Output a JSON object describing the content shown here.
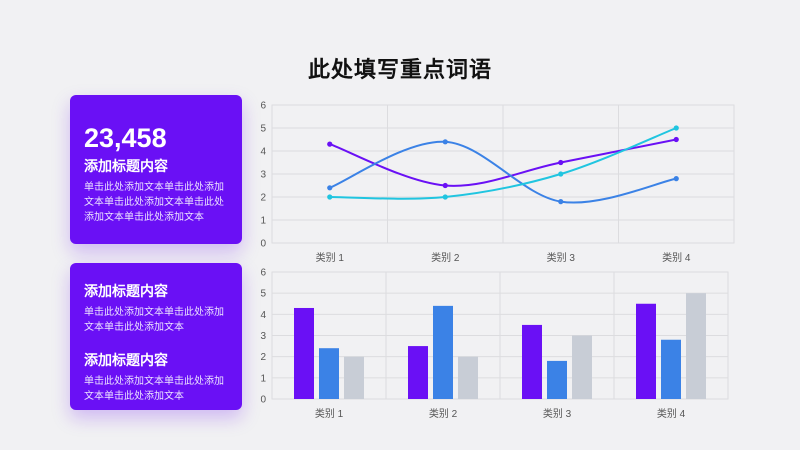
{
  "page": {
    "title": "此处填写重点词语"
  },
  "card1": {
    "number": "23,458",
    "heading": "添加标题内容",
    "body": "单击此处添加文本单击此处添加文本单击此处添加文本单击此处添加文本单击此处添加文本"
  },
  "card2": {
    "blocks": [
      {
        "heading": "添加标题内容",
        "body": "单击此处添加文本单击此处添加文本单击此处添加文本"
      },
      {
        "heading": "添加标题内容",
        "body": "单击此处添加文本单击此处添加文本单击此处添加文本"
      }
    ]
  },
  "colors": {
    "accent": "#6a10f5",
    "series1": "#6a10f5",
    "series2": "#3b82e6",
    "series3": "#20c5e0",
    "series3_bar": "#c8cdd6"
  },
  "chart_data": [
    {
      "type": "line",
      "title": "",
      "categories": [
        "类别 1",
        "类别 2",
        "类别 3",
        "类别 4"
      ],
      "ylim": [
        0,
        6
      ],
      "yticks": [
        0,
        1,
        2,
        3,
        4,
        5,
        6
      ],
      "grid": true,
      "smooth": true,
      "series": [
        {
          "values": [
            4.3,
            2.5,
            3.5,
            4.5
          ],
          "color": "#6a10f5"
        },
        {
          "values": [
            2.4,
            4.4,
            1.8,
            2.8
          ],
          "color": "#3b82e6"
        },
        {
          "values": [
            2.0,
            2.0,
            3.0,
            5.0
          ],
          "color": "#20c5e0"
        }
      ]
    },
    {
      "type": "bar",
      "title": "",
      "categories": [
        "类别 1",
        "类别 2",
        "类别 3",
        "类别 4"
      ],
      "ylim": [
        0,
        6
      ],
      "yticks": [
        0,
        1,
        2,
        3,
        4,
        5,
        6
      ],
      "grid": true,
      "series": [
        {
          "values": [
            4.3,
            2.5,
            3.5,
            4.5
          ],
          "color": "#6a10f5"
        },
        {
          "values": [
            2.4,
            4.4,
            1.8,
            2.8
          ],
          "color": "#3b82e6"
        },
        {
          "values": [
            2.0,
            2.0,
            3.0,
            5.0
          ],
          "color": "#c8cdd6"
        }
      ]
    }
  ]
}
